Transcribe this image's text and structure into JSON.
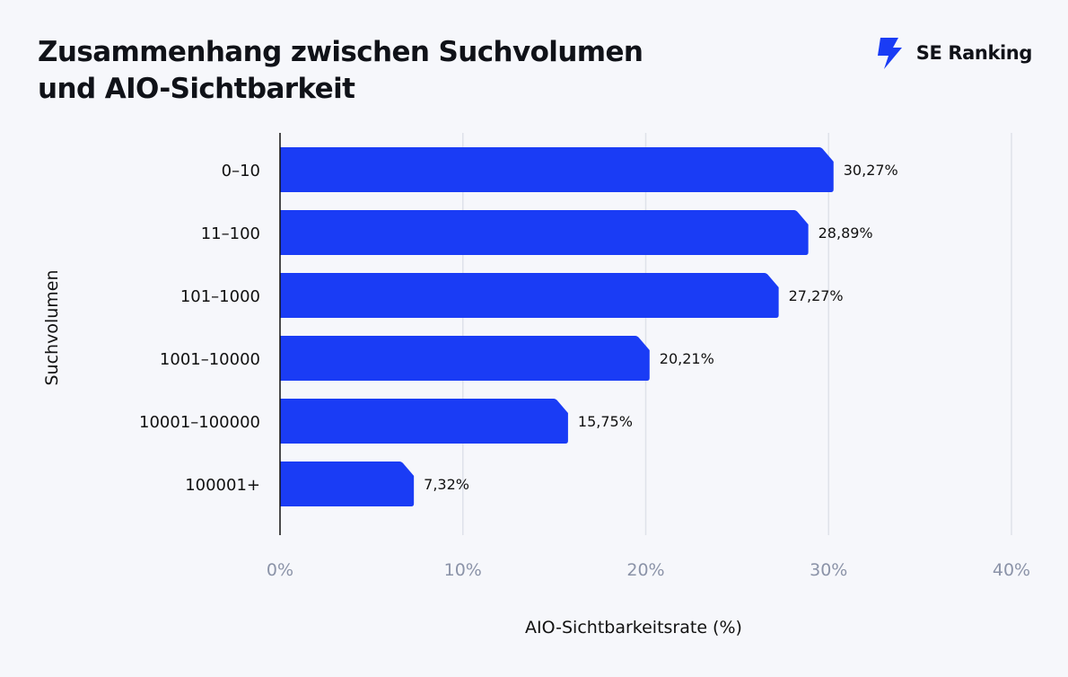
{
  "header": {
    "title_line1": "Zusammenhang zwischen Suchvolumen",
    "title_line2": "und AIO-Sichtbarkeit",
    "brand_name": "SE Ranking",
    "brand_icon": "se-ranking-bolt-logo",
    "brand_color": "#1a3cf5"
  },
  "chart_data": {
    "type": "bar",
    "orientation": "horizontal",
    "categories": [
      "0–10",
      "11–100",
      "101–1000",
      "1001–10000",
      "10001–100000",
      "100001+"
    ],
    "values": [
      30.27,
      28.89,
      27.27,
      20.21,
      15.75,
      7.32
    ],
    "value_labels": [
      "30,27%",
      "28,89%",
      "27,27%",
      "20,21%",
      "15,75%",
      "7,32%"
    ],
    "xlabel": "AIO-Sichtbarkeitsrate (%)",
    "ylabel": "Suchvolumen",
    "xlim": [
      0,
      40
    ],
    "xticks": [
      0,
      10,
      20,
      30,
      40
    ],
    "xtick_labels": [
      "0%",
      "10%",
      "20%",
      "30%",
      "40%"
    ],
    "grid": true,
    "bar_color": "#1a3cf5",
    "grid_color": "#dfe2ea"
  }
}
